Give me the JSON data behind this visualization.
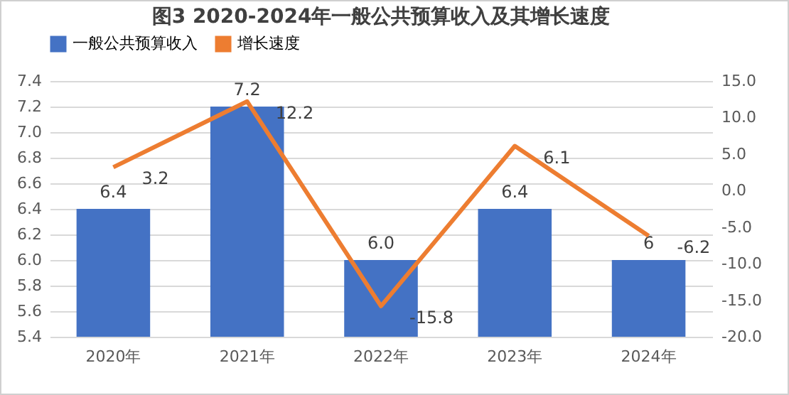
{
  "chart_data": {
    "type": "bar",
    "title": "图3   2020-2024年一般公共预算收入及其增长速度",
    "categories": [
      "2020年",
      "2021年",
      "2022年",
      "2023年",
      "2024年"
    ],
    "series": [
      {
        "name": "一般公共预算收入",
        "color": "#4472c4",
        "values": [
          6.4,
          7.2,
          6.0,
          6.4,
          6.0
        ],
        "value_labels": [
          "6.4",
          "7.2",
          "6.0",
          "6.4",
          "6"
        ]
      },
      {
        "name": "增长速度",
        "type": "line",
        "axis": "y2",
        "color": "#ed7d31",
        "values": [
          3.2,
          12.2,
          -15.8,
          6.1,
          -6.2
        ],
        "value_labels": [
          "3.2",
          "12.2",
          "-15.8",
          "6.1",
          "-6.2"
        ]
      }
    ],
    "ylim": [
      5.4,
      7.4
    ],
    "yticks": [
      {
        "value": 5.4,
        "label": "5.4"
      },
      {
        "value": 5.6,
        "label": "5.6"
      },
      {
        "value": 5.8,
        "label": "5.8"
      },
      {
        "value": 6.0,
        "label": "6.0"
      },
      {
        "value": 6.2,
        "label": "6.2"
      },
      {
        "value": 6.4,
        "label": "6.4"
      },
      {
        "value": 6.6,
        "label": "6.6"
      },
      {
        "value": 6.8,
        "label": "6.8"
      },
      {
        "value": 7.0,
        "label": "7.0"
      },
      {
        "value": 7.2,
        "label": "7.2"
      },
      {
        "value": 7.4,
        "label": "7.4"
      }
    ],
    "y2lim": [
      -20,
      15
    ],
    "y2ticks": [
      {
        "value": -20,
        "label": "-20.0"
      },
      {
        "value": -15,
        "label": "-15.0"
      },
      {
        "value": -10,
        "label": "-10.0"
      },
      {
        "value": -5,
        "label": "-5.0"
      },
      {
        "value": 0,
        "label": "0.0"
      },
      {
        "value": 5,
        "label": "5.0"
      },
      {
        "value": 10,
        "label": "10.0"
      },
      {
        "value": 15,
        "label": "15.0"
      }
    ],
    "grid": "y",
    "legend": "top"
  }
}
